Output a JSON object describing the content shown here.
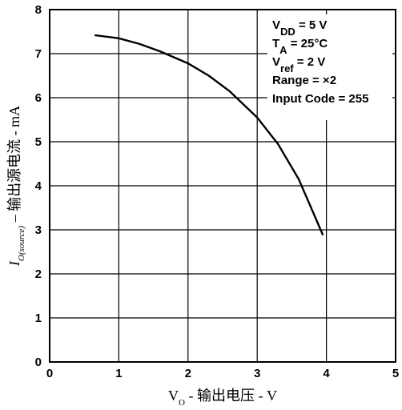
{
  "chart_data": {
    "type": "line",
    "xlabel": {
      "main": "V",
      "sub": "O",
      "rest": " - 输出电压 - V"
    },
    "ylabel": {
      "main": "I",
      "sub": "O(source)",
      "rest": " – 输出源电流 - mA"
    },
    "xlim": [
      0,
      5
    ],
    "ylim": [
      0,
      8
    ],
    "xticks": [
      "0",
      "1",
      "2",
      "3",
      "4",
      "5"
    ],
    "yticks": [
      "0",
      "1",
      "2",
      "3",
      "4",
      "5",
      "6",
      "7",
      "8"
    ],
    "grid": true,
    "series": [
      {
        "x": [
          0.65,
          1.0,
          1.3,
          1.6,
          2.0,
          2.3,
          2.6,
          3.0,
          3.3,
          3.6,
          3.95
        ],
        "y": [
          7.42,
          7.35,
          7.22,
          7.05,
          6.78,
          6.5,
          6.15,
          5.55,
          4.95,
          4.15,
          2.88
        ]
      }
    ],
    "annotation": {
      "lines": [
        {
          "main": "V",
          "sub": "DD",
          "rest": " = 5 V"
        },
        {
          "main": "T",
          "sub": "A",
          "rest": " = 25°C"
        },
        {
          "main": "V",
          "sub": "ref",
          "rest": " = 2 V"
        },
        {
          "main": "Range = ×2",
          "sub": "",
          "rest": ""
        },
        {
          "main": "Input Code = 255",
          "sub": "",
          "rest": ""
        }
      ]
    }
  }
}
